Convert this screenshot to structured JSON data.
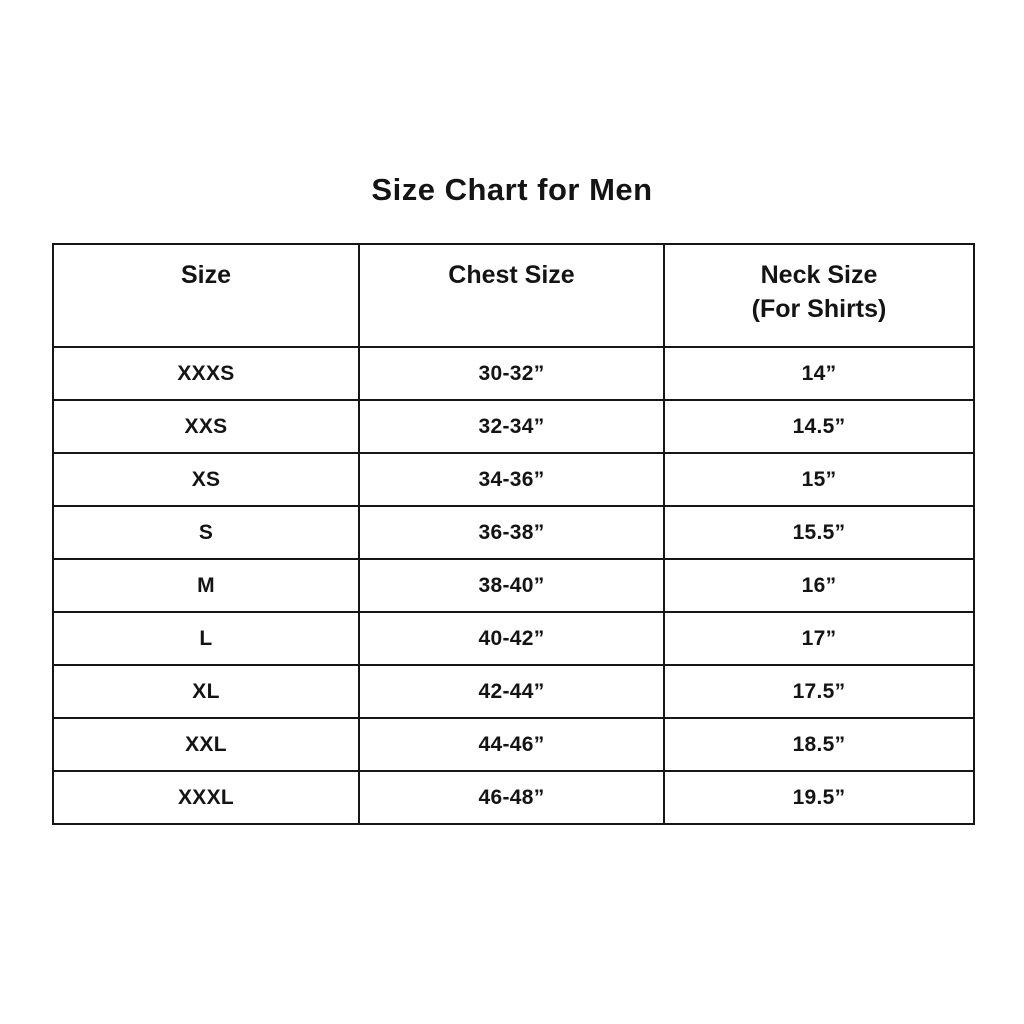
{
  "title": "Size Chart for Men",
  "header": {
    "neck_line1": "Neck Size",
    "neck_line2": "(For Shirts)"
  },
  "chart_data": {
    "type": "table",
    "title": "Size Chart for Men",
    "columns": [
      "Size",
      "Chest Size",
      "Neck Size (For Shirts)"
    ],
    "rows": [
      [
        "XXXS",
        "30-32”",
        "14”"
      ],
      [
        "XXS",
        "32-34”",
        "14.5”"
      ],
      [
        "XS",
        "34-36”",
        "15”"
      ],
      [
        "S",
        "36-38”",
        "15.5”"
      ],
      [
        "M",
        "38-40”",
        "16”"
      ],
      [
        "L",
        "40-42”",
        "17”"
      ],
      [
        "XL",
        "42-44”",
        "17.5”"
      ],
      [
        "XXL",
        "44-46”",
        "18.5”"
      ],
      [
        "XXXL",
        "46-48”",
        "19.5”"
      ]
    ]
  }
}
